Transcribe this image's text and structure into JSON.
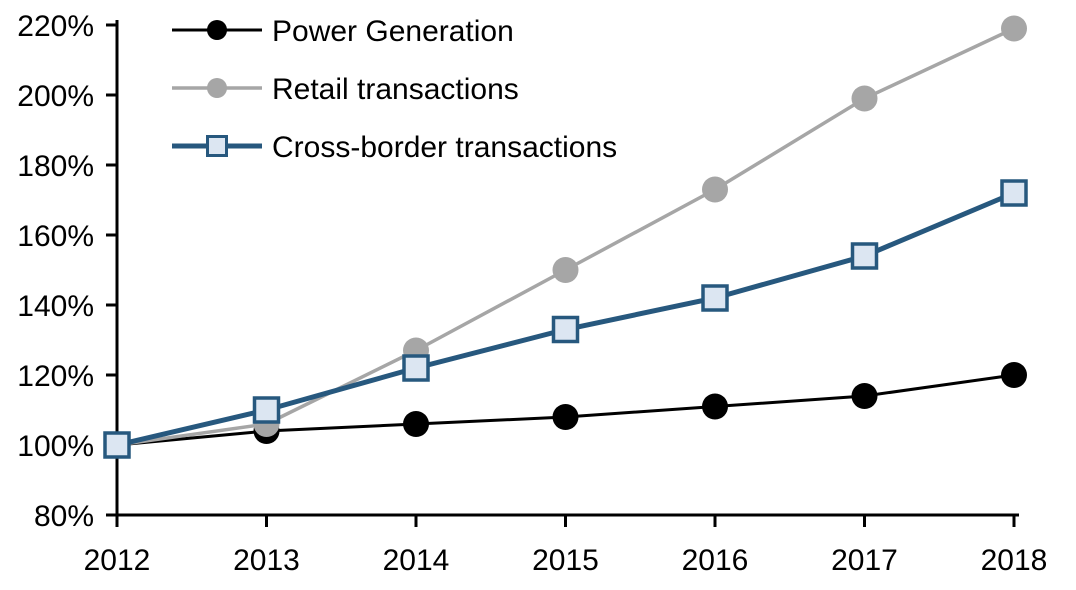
{
  "chart_data": {
    "type": "line",
    "title": "",
    "xlabel": "",
    "ylabel": "",
    "unit": "%",
    "categories": [
      "2012",
      "2013",
      "2014",
      "2015",
      "2016",
      "2017",
      "2018"
    ],
    "x_ticks": [
      "2012",
      "2013",
      "2014",
      "2015",
      "2016",
      "2017",
      "2018"
    ],
    "y_ticks": [
      "220%",
      "200%",
      "180%",
      "160%",
      "140%",
      "120%",
      "100%",
      "80%"
    ],
    "y_tick_values": [
      220,
      200,
      180,
      160,
      140,
      120,
      100,
      80
    ],
    "ylim": [
      80,
      220
    ],
    "grid": false,
    "legend_position": "top-left",
    "background": "#FFFFFF",
    "axis_color": "#000000",
    "series": [
      {
        "name": "Power Generation",
        "values": [
          100,
          104,
          106,
          108,
          111,
          114,
          120
        ],
        "color": "#000000",
        "marker": "circle",
        "marker_fill": "#000000",
        "line_width": 3
      },
      {
        "name": "Retail transactions",
        "values": [
          100,
          106,
          127,
          150,
          173,
          199,
          219
        ],
        "color": "#A6A6A6",
        "marker": "circle",
        "marker_fill": "#A6A6A6",
        "line_width": 3.5
      },
      {
        "name": "Cross-border transactions",
        "values": [
          100,
          110,
          122,
          133,
          142,
          154,
          172
        ],
        "color": "#27587E",
        "marker": "square",
        "marker_fill": "#DCE6F2",
        "line_width": 5
      }
    ]
  }
}
